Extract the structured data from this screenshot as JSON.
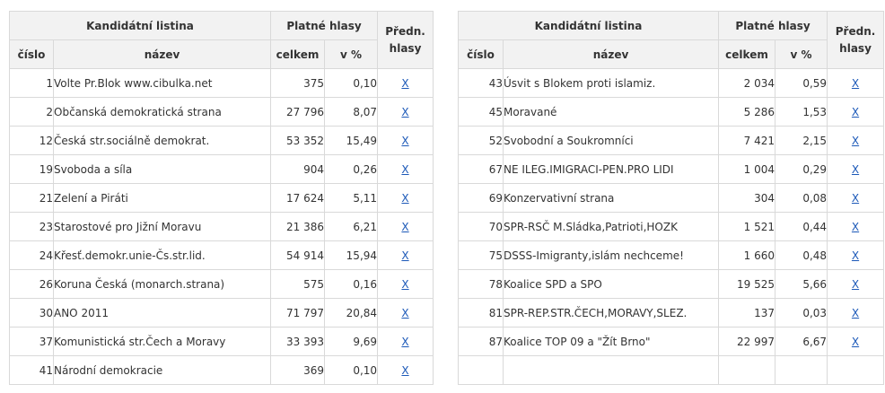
{
  "headers": {
    "list": "Kandidátní listina",
    "valid_votes": "Platné hlasy",
    "pref_votes_line1": "Předn.",
    "pref_votes_line2": "hlasy",
    "number": "číslo",
    "name": "název",
    "total": "celkem",
    "percent": "v %"
  },
  "link_text": "X",
  "left_rows": [
    {
      "num": "1",
      "name": "Volte Pr.Blok www.cibulka.net",
      "total": "375",
      "pct": "0,10"
    },
    {
      "num": "2",
      "name": "Občanská demokratická strana",
      "total": "27 796",
      "pct": "8,07"
    },
    {
      "num": "12",
      "name": "Česká str.sociálně demokrat.",
      "total": "53 352",
      "pct": "15,49"
    },
    {
      "num": "19",
      "name": "Svoboda a síla",
      "total": "904",
      "pct": "0,26"
    },
    {
      "num": "21",
      "name": "Zelení a Piráti",
      "total": "17 624",
      "pct": "5,11"
    },
    {
      "num": "23",
      "name": "Starostové pro Jižní Moravu",
      "total": "21 386",
      "pct": "6,21"
    },
    {
      "num": "24",
      "name": "Křesť.demokr.unie-Čs.str.lid.",
      "total": "54 914",
      "pct": "15,94"
    },
    {
      "num": "26",
      "name": "Koruna Česká (monarch.strana)",
      "total": "575",
      "pct": "0,16"
    },
    {
      "num": "30",
      "name": "ANO 2011",
      "total": "71 797",
      "pct": "20,84"
    },
    {
      "num": "37",
      "name": "Komunistická str.Čech a Moravy",
      "total": "33 393",
      "pct": "9,69"
    },
    {
      "num": "41",
      "name": "Národní demokracie",
      "total": "369",
      "pct": "0,10"
    }
  ],
  "right_rows": [
    {
      "num": "43",
      "name": "Úsvit s Blokem proti islamiz.",
      "total": "2 034",
      "pct": "0,59"
    },
    {
      "num": "45",
      "name": "Moravané",
      "total": "5 286",
      "pct": "1,53"
    },
    {
      "num": "52",
      "name": "Svobodní a Soukromníci",
      "total": "7 421",
      "pct": "2,15"
    },
    {
      "num": "67",
      "name": "NE ILEG.IMIGRACI-PEN.PRO LIDI",
      "total": "1 004",
      "pct": "0,29"
    },
    {
      "num": "69",
      "name": "Konzervativní strana",
      "total": "304",
      "pct": "0,08"
    },
    {
      "num": "70",
      "name": "SPR-RSČ M.Sládka,Patrioti,HOZK",
      "total": "1 521",
      "pct": "0,44"
    },
    {
      "num": "75",
      "name": "DSSS-Imigranty,islám nechceme!",
      "total": "1 660",
      "pct": "0,48"
    },
    {
      "num": "78",
      "name": "Koalice SPD a SPO",
      "total": "19 525",
      "pct": "5,66"
    },
    {
      "num": "81",
      "name": "SPR-REP.STR.ČECH,MORAVY,SLEZ.",
      "total": "137",
      "pct": "0,03"
    },
    {
      "num": "87",
      "name": "Koalice TOP 09 a \"Žít Brno\"",
      "total": "22 997",
      "pct": "6,67"
    }
  ]
}
